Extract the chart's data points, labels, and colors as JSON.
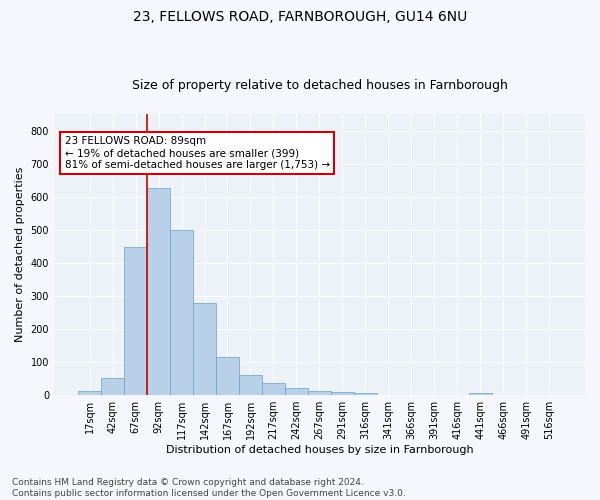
{
  "title_line1": "23, FELLOWS ROAD, FARNBOROUGH, GU14 6NU",
  "title_line2": "Size of property relative to detached houses in Farnborough",
  "xlabel": "Distribution of detached houses by size in Farnborough",
  "ylabel": "Number of detached properties",
  "footnote": "Contains HM Land Registry data © Crown copyright and database right 2024.\nContains public sector information licensed under the Open Government Licence v3.0.",
  "bar_labels": [
    "17sqm",
    "42sqm",
    "67sqm",
    "92sqm",
    "117sqm",
    "142sqm",
    "167sqm",
    "192sqm",
    "217sqm",
    "242sqm",
    "267sqm",
    "291sqm",
    "316sqm",
    "341sqm",
    "366sqm",
    "391sqm",
    "416sqm",
    "441sqm",
    "466sqm",
    "491sqm",
    "516sqm"
  ],
  "bar_values": [
    12,
    52,
    448,
    625,
    498,
    278,
    117,
    62,
    38,
    23,
    12,
    10,
    7,
    0,
    0,
    0,
    0,
    7,
    0,
    0,
    0
  ],
  "bar_color": "#b8d0e8",
  "bar_edge_color": "#6aa0cc",
  "bar_width": 1.0,
  "property_line_x": 2.5,
  "annotation_text": "23 FELLOWS ROAD: 89sqm\n← 19% of detached houses are smaller (399)\n81% of semi-detached houses are larger (1,753) →",
  "annotation_box_color": "#ffffff",
  "annotation_box_edge": "#cc0000",
  "property_line_color": "#cc0000",
  "ylim": [
    0,
    850
  ],
  "yticks": [
    0,
    100,
    200,
    300,
    400,
    500,
    600,
    700,
    800
  ],
  "background_color": "#edf2f9",
  "grid_color": "#ffffff",
  "title_fontsize": 10,
  "subtitle_fontsize": 9,
  "axis_label_fontsize": 8,
  "tick_fontsize": 7,
  "annotation_fontsize": 7.5,
  "footnote_fontsize": 6.5
}
